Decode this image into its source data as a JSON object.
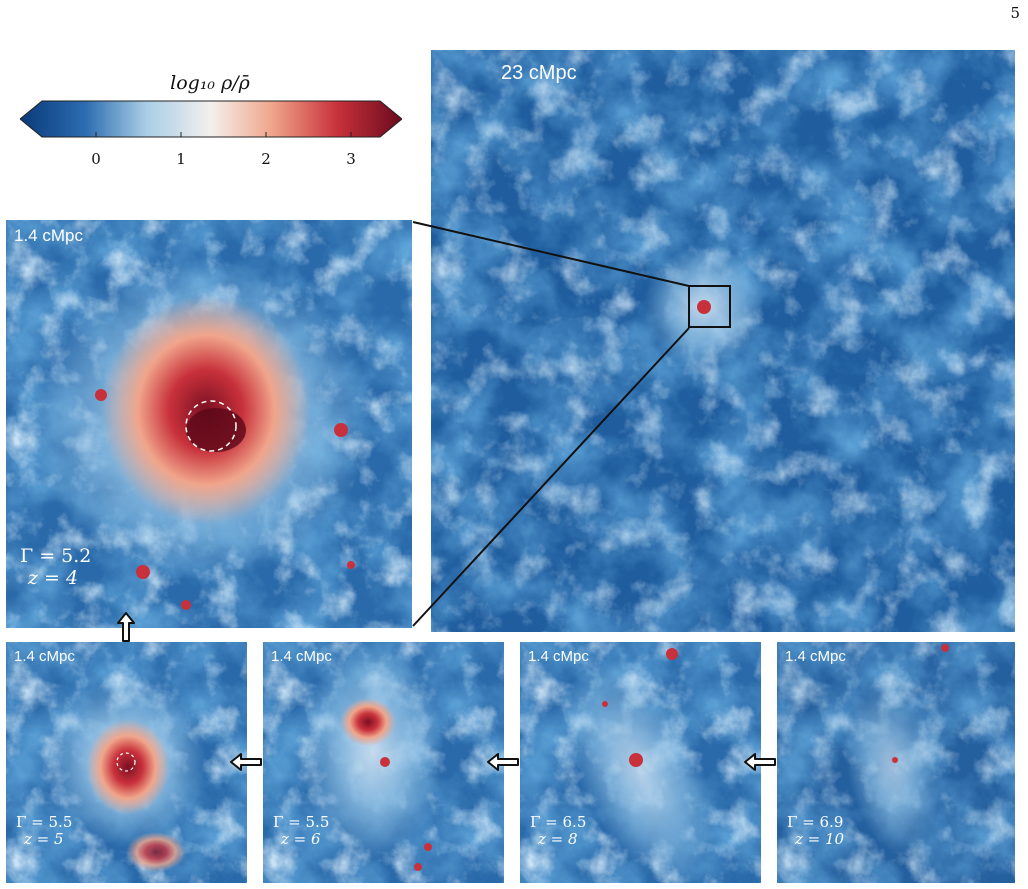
{
  "page_number": "5",
  "colorbar": {
    "title": "log₁₀ ρ/ρ̄",
    "ticks": [
      "0",
      "1",
      "2",
      "3"
    ],
    "colors": [
      "#0a3a7a",
      "#2b6cb0",
      "#a9cde6",
      "#f4f0ed",
      "#f0a58b",
      "#c8313b",
      "#6b0a1e"
    ]
  },
  "main_panel": {
    "scale": "23 cMpc"
  },
  "zoom_panel": {
    "scale": "1.4 cMpc",
    "gamma": "Γ = 5.2",
    "z": "z = 4"
  },
  "small_panels": [
    {
      "scale": "1.4 cMpc",
      "gamma": "Γ = 5.5",
      "z": "z = 5"
    },
    {
      "scale": "1.4 cMpc",
      "gamma": "Γ = 5.5",
      "z": "z = 6"
    },
    {
      "scale": "1.4 cMpc",
      "gamma": "Γ = 6.5",
      "z": "z = 8"
    },
    {
      "scale": "1.4 cMpc",
      "gamma": "Γ = 6.9",
      "z": "z = 10"
    }
  ],
  "icons": {
    "arrows": [
      "up-arrow-icon",
      "left-arrow-icon",
      "left-arrow-icon",
      "left-arrow-icon"
    ]
  }
}
